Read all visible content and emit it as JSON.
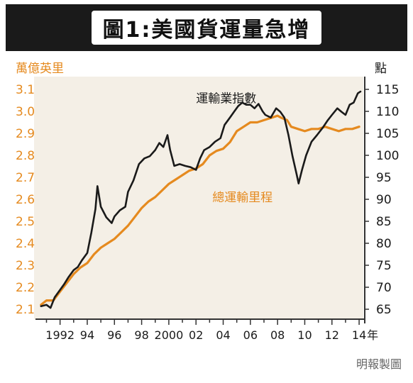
{
  "title": "圖1:美國貨運量急增",
  "credit": "明報製圖",
  "colors": {
    "orange": "#e58a1f",
    "black": "#1a1a1a",
    "plot_bg": "#f4efe6",
    "axis": "#333333"
  },
  "chart_data": {
    "type": "line",
    "left_unit": "萬億英里",
    "right_unit": "點",
    "x_unit_suffix": "年",
    "left_axis": {
      "min": 2.1,
      "max": 3.1,
      "ticks": [
        "2.1",
        "2.2",
        "2.3",
        "2.4",
        "2.5",
        "2.6",
        "2.7",
        "2.8",
        "2.9",
        "3.0",
        "3.1"
      ]
    },
    "right_axis": {
      "min": 65,
      "max": 115,
      "ticks": [
        "65",
        "70",
        "75",
        "80",
        "85",
        "90",
        "95",
        "100",
        "105",
        "110",
        "115"
      ]
    },
    "x_range": [
      1990.4,
      2014.1
    ],
    "x_ticks": [
      {
        "value": 1992,
        "label": "1992"
      },
      {
        "value": 1994,
        "label": "94"
      },
      {
        "value": 1996,
        "label": "96"
      },
      {
        "value": 1998,
        "label": "98"
      },
      {
        "value": 2000,
        "label": "2000"
      },
      {
        "value": 2002,
        "label": "02"
      },
      {
        "value": 2004,
        "label": "04"
      },
      {
        "value": 2006,
        "label": "06"
      },
      {
        "value": 2008,
        "label": "08"
      },
      {
        "value": 2010,
        "label": "10"
      },
      {
        "value": 2012,
        "label": "12"
      },
      {
        "value": 2014,
        "label": "14"
      }
    ],
    "series": [
      {
        "name": "運輸業指數",
        "axis": "right",
        "color": "#1a1a1a",
        "points": [
          [
            1990.6,
            65.7
          ],
          [
            1991.0,
            66.0
          ],
          [
            1991.3,
            65.3
          ],
          [
            1991.6,
            67.7
          ],
          [
            1992.0,
            69.4
          ],
          [
            1992.3,
            70.7
          ],
          [
            1992.6,
            72.2
          ],
          [
            1993.0,
            73.9
          ],
          [
            1993.3,
            74.6
          ],
          [
            1993.6,
            76.1
          ],
          [
            1994.0,
            77.8
          ],
          [
            1994.3,
            82.4
          ],
          [
            1994.6,
            87.8
          ],
          [
            1994.75,
            93.0
          ],
          [
            1995.0,
            88.3
          ],
          [
            1995.4,
            85.9
          ],
          [
            1995.8,
            84.6
          ],
          [
            1996.0,
            86.1
          ],
          [
            1996.4,
            87.5
          ],
          [
            1996.8,
            88.3
          ],
          [
            1997.0,
            91.7
          ],
          [
            1997.4,
            94.3
          ],
          [
            1997.8,
            98.0
          ],
          [
            1998.2,
            99.3
          ],
          [
            1998.6,
            99.8
          ],
          [
            1999.0,
            101.2
          ],
          [
            1999.3,
            102.8
          ],
          [
            1999.6,
            101.9
          ],
          [
            1999.9,
            104.6
          ],
          [
            2000.1,
            101.2
          ],
          [
            2000.4,
            97.6
          ],
          [
            2000.8,
            98.0
          ],
          [
            2001.2,
            97.6
          ],
          [
            2001.6,
            97.3
          ],
          [
            2002.0,
            96.7
          ],
          [
            2002.3,
            99.3
          ],
          [
            2002.6,
            101.2
          ],
          [
            2003.0,
            101.9
          ],
          [
            2003.4,
            103.1
          ],
          [
            2003.8,
            103.9
          ],
          [
            2004.1,
            106.9
          ],
          [
            2004.5,
            108.6
          ],
          [
            2004.8,
            109.9
          ],
          [
            2005.1,
            111.2
          ],
          [
            2005.4,
            112.0
          ],
          [
            2005.7,
            111.5
          ],
          [
            2006.0,
            111.5
          ],
          [
            2006.3,
            110.7
          ],
          [
            2006.6,
            111.7
          ],
          [
            2006.9,
            110.0
          ],
          [
            2007.1,
            109.2
          ],
          [
            2007.5,
            108.6
          ],
          [
            2007.9,
            110.7
          ],
          [
            2008.2,
            109.9
          ],
          [
            2008.5,
            108.6
          ],
          [
            2008.8,
            104.6
          ],
          [
            2009.1,
            99.8
          ],
          [
            2009.4,
            95.7
          ],
          [
            2009.55,
            93.6
          ],
          [
            2009.8,
            96.7
          ],
          [
            2010.1,
            100.0
          ],
          [
            2010.5,
            103.1
          ],
          [
            2010.9,
            104.6
          ],
          [
            2011.3,
            106.2
          ],
          [
            2011.7,
            108.0
          ],
          [
            2012.0,
            109.2
          ],
          [
            2012.4,
            110.7
          ],
          [
            2012.7,
            109.9
          ],
          [
            2013.0,
            109.2
          ],
          [
            2013.3,
            111.5
          ],
          [
            2013.6,
            112.0
          ],
          [
            2013.9,
            114.1
          ],
          [
            2014.1,
            114.5
          ]
        ]
      },
      {
        "name": "總運輸里程",
        "axis": "left",
        "color": "#e58a1f",
        "points": [
          [
            1990.6,
            2.12
          ],
          [
            1991.0,
            2.14
          ],
          [
            1991.5,
            2.14
          ],
          [
            1992.0,
            2.18
          ],
          [
            1992.5,
            2.22
          ],
          [
            1993.0,
            2.26
          ],
          [
            1993.5,
            2.29
          ],
          [
            1994.0,
            2.31
          ],
          [
            1994.5,
            2.35
          ],
          [
            1995.0,
            2.38
          ],
          [
            1995.5,
            2.4
          ],
          [
            1996.0,
            2.42
          ],
          [
            1996.5,
            2.45
          ],
          [
            1997.0,
            2.48
          ],
          [
            1997.5,
            2.52
          ],
          [
            1998.0,
            2.56
          ],
          [
            1998.5,
            2.59
          ],
          [
            1999.0,
            2.61
          ],
          [
            1999.5,
            2.64
          ],
          [
            2000.0,
            2.67
          ],
          [
            2000.5,
            2.69
          ],
          [
            2001.0,
            2.71
          ],
          [
            2001.5,
            2.73
          ],
          [
            2002.0,
            2.74
          ],
          [
            2002.5,
            2.76
          ],
          [
            2003.0,
            2.8
          ],
          [
            2003.5,
            2.82
          ],
          [
            2004.0,
            2.83
          ],
          [
            2004.5,
            2.86
          ],
          [
            2005.0,
            2.91
          ],
          [
            2005.5,
            2.93
          ],
          [
            2006.0,
            2.95
          ],
          [
            2006.5,
            2.95
          ],
          [
            2007.0,
            2.96
          ],
          [
            2007.5,
            2.97
          ],
          [
            2008.0,
            2.98
          ],
          [
            2008.3,
            2.97
          ],
          [
            2008.7,
            2.96
          ],
          [
            2009.0,
            2.93
          ],
          [
            2009.5,
            2.92
          ],
          [
            2010.0,
            2.91
          ],
          [
            2010.5,
            2.92
          ],
          [
            2011.0,
            2.92
          ],
          [
            2011.5,
            2.93
          ],
          [
            2012.0,
            2.92
          ],
          [
            2012.5,
            2.91
          ],
          [
            2013.0,
            2.92
          ],
          [
            2013.5,
            2.92
          ],
          [
            2014.0,
            2.93
          ]
        ]
      }
    ],
    "annotations": [
      {
        "text": "運輸業指數",
        "x": 2002.0,
        "y": 112.0,
        "axis": "right",
        "color": "#1a1a1a"
      },
      {
        "text": "總運輸里程",
        "x": 2003.2,
        "y": 2.59,
        "axis": "left",
        "color": "#e58a1f"
      }
    ]
  }
}
